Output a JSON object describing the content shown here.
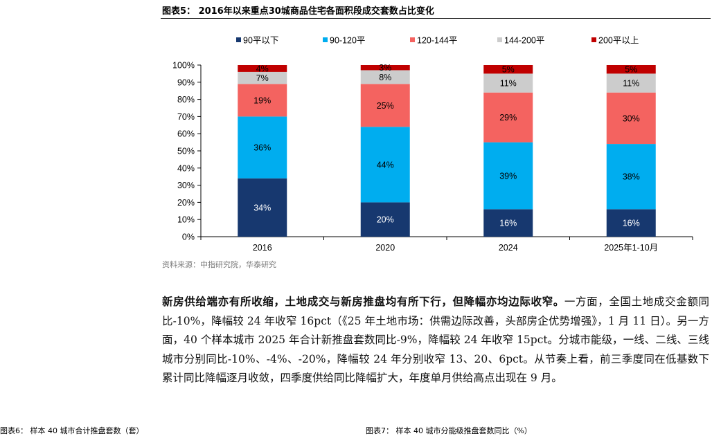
{
  "figure_title": "图表5：  2016年以来重点30城商品住宅各面积段成交套数占比变化",
  "source": "资料来源：中指研究院，华泰研究",
  "paragraph": {
    "lead": "新房供给端亦有所收缩，土地成交与新房推盘均有所下行，但降幅亦均边际收窄。",
    "body": "一方面，全国土地成交金额同比-10%，降幅较 24 年收窄 16pct（《25 年土地市场：供需边际改善，头部房企优势增强》，1 月 11 日）。另一方面，40 个样本城市 2025 年合计新推盘套数同比-9%，降幅较 24 年收窄 15pct。分城市能级，一线、二线、三线城市分别同比-10%、-4%、-20%，降幅较 24 年分别收窄 13、20、6pct。从节奏上看，前三季度同在低基数下累计同比降幅逐月收敛，四季度供给同比降幅扩大，年度单月供给高点出现在 9 月。"
  },
  "cut_captions": {
    "left": "图表6：  样本 40 城市合计推盘套数（套）",
    "right": "图表7：  样本 40 城市分能级推盘套数同比（%）"
  },
  "chart_data": {
    "type": "bar",
    "stacked": true,
    "categories": [
      "2016",
      "2020",
      "2024",
      "2025年1-10月"
    ],
    "ylim": [
      0,
      100
    ],
    "yticks": [
      "0%",
      "10%",
      "20%",
      "30%",
      "40%",
      "50%",
      "60%",
      "70%",
      "80%",
      "90%",
      "100%"
    ],
    "legend_position": "top",
    "series": [
      {
        "name": "90平以下",
        "color": "#17386f",
        "values": [
          34,
          20,
          16,
          16
        ],
        "labels": [
          "34%",
          "20%",
          "16%",
          "16%"
        ],
        "label_color": "#ffffff"
      },
      {
        "name": "90-120平",
        "color": "#00adef",
        "values": [
          36,
          44,
          39,
          38
        ],
        "labels": [
          "36%",
          "44%",
          "39%",
          "38%"
        ],
        "label_color": "#000000"
      },
      {
        "name": "120-144平",
        "color": "#f46360",
        "values": [
          19,
          25,
          29,
          30
        ],
        "labels": [
          "19%",
          "25%",
          "29%",
          "30%"
        ],
        "label_color": "#000000"
      },
      {
        "name": "144-200平",
        "color": "#cccccc",
        "values": [
          7,
          8,
          11,
          11
        ],
        "labels": [
          "7%",
          "8%",
          "11%",
          "11%"
        ],
        "label_color": "#000000"
      },
      {
        "name": "200平以上",
        "color": "#c00000",
        "values": [
          4,
          3,
          5,
          5
        ],
        "labels": [
          "4%",
          "3%",
          "5%",
          "5%"
        ],
        "label_color": "#000000"
      }
    ]
  }
}
